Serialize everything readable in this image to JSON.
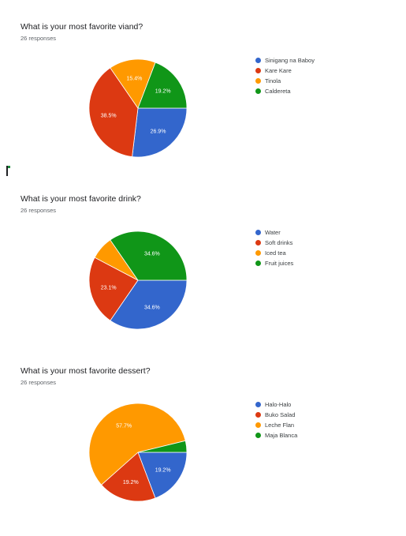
{
  "chart_data": [
    {
      "type": "pie",
      "title": "What is your most favorite viand?",
      "subtitle": "26 responses",
      "categories": [
        "Sinigang na Baboy",
        "Kare Kare",
        "Tinola",
        "Caldereta"
      ],
      "values": [
        26.9,
        38.5,
        15.4,
        19.2
      ],
      "value_labels": [
        "26.9%",
        "38.5%",
        "15.4%",
        "19.2%"
      ],
      "colors": [
        "#3366cc",
        "#dc3912",
        "#ff9900",
        "#109618"
      ],
      "legend": "right"
    },
    {
      "type": "pie",
      "title": "What is your most favorite drink?",
      "subtitle": "26 responses",
      "categories": [
        "Water",
        "Soft drinks",
        "Iced tea",
        "Fruit juices"
      ],
      "values": [
        34.6,
        23.1,
        7.7,
        34.6
      ],
      "value_labels": [
        "34.6%",
        "23.1%",
        "",
        "34.6%"
      ],
      "colors": [
        "#3366cc",
        "#dc3912",
        "#ff9900",
        "#109618"
      ],
      "legend": "right"
    },
    {
      "type": "pie",
      "title": "What is your most favorite dessert?",
      "subtitle": "26 responses",
      "categories": [
        "Halo-Halo",
        "Buko Salad",
        "Leche Flan",
        "Maja Blanca"
      ],
      "values": [
        19.2,
        19.2,
        57.7,
        3.8
      ],
      "value_labels": [
        "19.2%",
        "19.2%",
        "57.7%",
        ""
      ],
      "colors": [
        "#3366cc",
        "#dc3912",
        "#ff9900",
        "#109618"
      ],
      "legend": "right"
    }
  ]
}
